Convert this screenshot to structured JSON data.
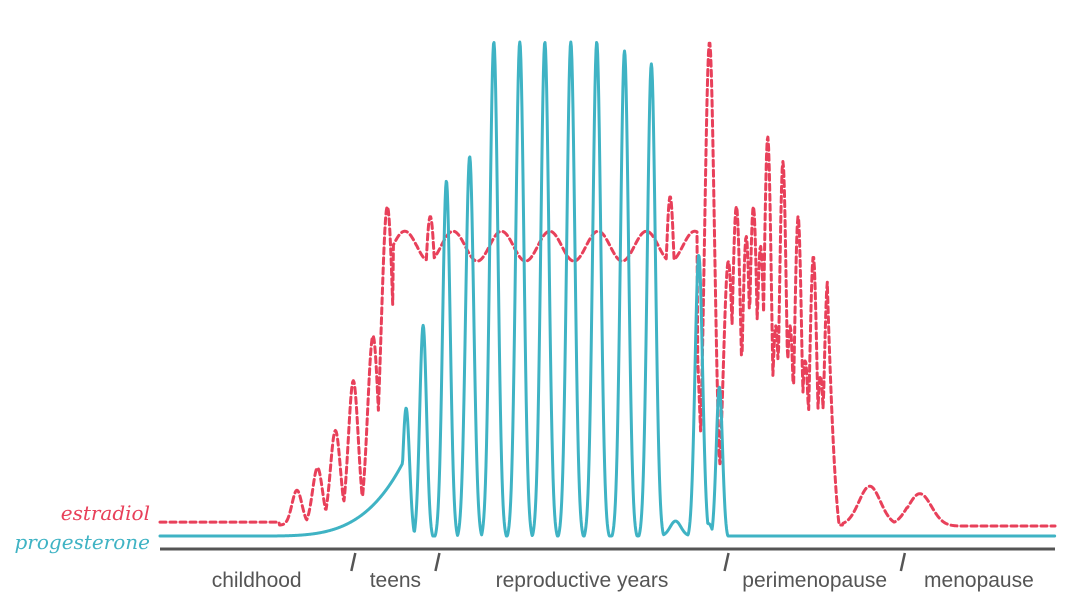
{
  "chart_data": {
    "type": "line",
    "title": "",
    "xlabel": "",
    "ylabel": "",
    "xlim": [
      0,
      100
    ],
    "ylim": [
      0,
      100
    ],
    "grid": false,
    "legend": "left, next to line starts",
    "stages": [
      {
        "label": "childhood",
        "start": 0,
        "end": 21.6
      },
      {
        "label": "teens",
        "start": 21.6,
        "end": 31.0
      },
      {
        "label": "reproductive years",
        "start": 31.0,
        "end": 63.3
      },
      {
        "label": "perimenopause",
        "start": 63.3,
        "end": 83.0
      },
      {
        "label": "menopause",
        "start": 83.0,
        "end": 100
      }
    ],
    "series": [
      {
        "name": "estradiol",
        "color": "#e8405a",
        "style": "dashed",
        "x": [
          0,
          13.3,
          15.8,
          17.2,
          18.5,
          19.2,
          20.4,
          21.0,
          22.3,
          23.1,
          24.1,
          24.7,
          26.0,
          27.0,
          28.7,
          30.1,
          31.2,
          32.3,
          33.5,
          34.8,
          36.0,
          37.4,
          38.7,
          40.1,
          41.4,
          42.8,
          44.1,
          45.4,
          46.8,
          48.1,
          49.5,
          50.8,
          52.1,
          53.5,
          54.8,
          56.2,
          57.5,
          58.9,
          60.2,
          61.5,
          62.5,
          63.6,
          64.6,
          65.5,
          66.2,
          67.0,
          67.7,
          68.5,
          69.1,
          70.0,
          70.8,
          72.0,
          73.0,
          73.9,
          74.5,
          75.6,
          76.4,
          77.6,
          78.4,
          79.9,
          80.8,
          82.2,
          84.0,
          86.0,
          88.5,
          90.5,
          93.2,
          96.0,
          100
        ],
        "values": [
          3.6,
          3.6,
          10,
          9.5,
          14.5,
          10,
          22,
          18,
          33,
          29,
          42,
          34,
          72,
          62,
          70,
          76,
          71,
          70,
          64,
          66,
          62,
          64,
          60,
          63,
          59,
          62,
          59,
          64,
          60,
          65,
          60,
          64,
          59,
          65,
          61,
          70,
          72,
          81,
          55,
          100,
          56,
          68,
          60,
          67,
          59,
          81,
          42,
          75,
          40,
          65,
          33,
          58,
          28,
          52,
          24,
          0.5,
          10.5,
          2.0,
          9.0,
          2.8,
          2.8,
          2.8,
          2.8,
          2.8,
          2.8,
          2.8,
          2.8,
          2.8,
          2.8
        ],
        "peaks": [
          [
            15.7,
            10
          ],
          [
            17.9,
            14.5
          ],
          [
            19.9,
            22
          ],
          [
            21.7,
            33
          ],
          [
            23.7,
            42
          ],
          [
            25.4,
            72
          ],
          [
            28.7,
            70
          ],
          [
            30.1,
            76
          ],
          [
            32.3,
            70
          ],
          [
            34.8,
            66
          ],
          [
            37.4,
            64
          ],
          [
            40.1,
            63
          ],
          [
            42.8,
            62
          ],
          [
            45.4,
            64
          ],
          [
            48.1,
            65
          ],
          [
            50.8,
            64
          ],
          [
            53.5,
            65
          ],
          [
            57.0,
            70
          ],
          [
            61.5,
            81
          ],
          [
            64.4,
            100
          ],
          [
            66.2,
            68
          ],
          [
            67.7,
            67
          ],
          [
            69.3,
            81
          ],
          [
            70.7,
            75
          ],
          [
            72.7,
            65
          ],
          [
            74.8,
            58
          ],
          [
            79.3,
            10.5
          ],
          [
            84.7,
            9.0
          ]
        ],
        "baseline": [
          3.6,
          62,
          2.8
        ]
      },
      {
        "name": "progesterone",
        "color": "#3fb3c4",
        "style": "solid",
        "x": [
          0,
          15,
          19.8,
          23.9,
          27.0,
          30.4,
          32.2,
          34.0,
          36.5,
          38.9,
          41.4,
          43.9,
          46.4,
          48.8,
          51.4,
          53.8,
          56.4,
          58.9,
          61.3,
          63.6,
          64.7,
          65.5,
          66.8,
          67.8,
          69.0,
          70.1,
          70.5,
          72.0,
          74.0,
          100
        ],
        "values": [
          0.8,
          0.8,
          1.5,
          3.5,
          26.5,
          1.0,
          47.7,
          1.0,
          93.6,
          1.0,
          68.5,
          1.0,
          100,
          1.0,
          100,
          1.0,
          100,
          1.0,
          100,
          1.0,
          97.5,
          1.0,
          93.2,
          1.0,
          3.0,
          1.0,
          57.2,
          1.0,
          30.7,
          0.8
        ],
        "peaks": [
          [
            27.5,
            26.5
          ],
          [
            29.4,
            43.1
          ],
          [
            31.9,
            72.1
          ],
          [
            34.6,
            77.0
          ],
          [
            37.2,
            100
          ],
          [
            40.1,
            100
          ],
          [
            43.1,
            100
          ],
          [
            46.0,
            100
          ],
          [
            48.9,
            100
          ],
          [
            52.0,
            98.2
          ],
          [
            54.9,
            95.6
          ],
          [
            57.6,
            4.0
          ],
          [
            60.2,
            57.2
          ],
          [
            62.5,
            30.7
          ],
          [
            61.5,
            3.0
          ]
        ],
        "baseline": [
          0.8,
          0.8
        ]
      }
    ]
  }
}
